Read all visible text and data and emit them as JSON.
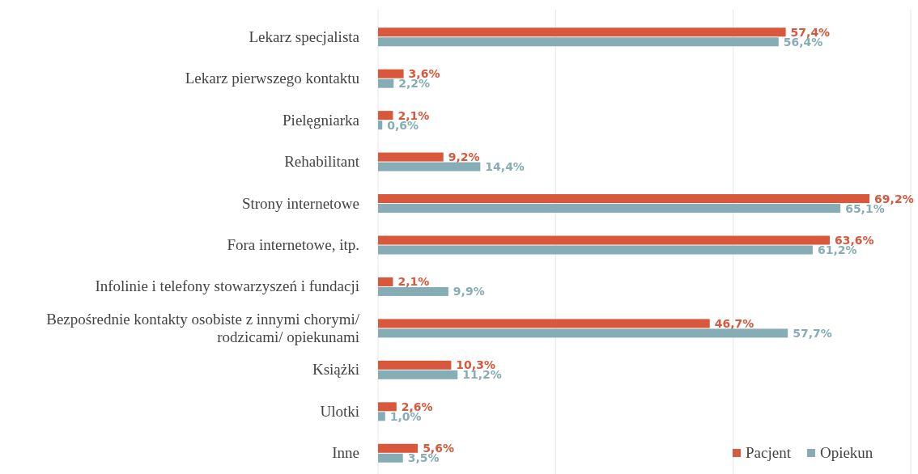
{
  "chart_data": {
    "type": "bar",
    "orientation": "horizontal",
    "categories": [
      "Lekarz specjalista",
      "Lekarz pierwszego kontaktu",
      "Pielęgniarka",
      "Rehabilitant",
      "Strony internetowe",
      "Fora internetowe, itp.",
      "Infolinie i telefony stowarzyszeń i fundacji",
      "Bezpośrednie kontakty osobiste z innymi chorymi/ rodzicami/ opiekunami",
      "Książki",
      "Ulotki",
      "Inne"
    ],
    "series": [
      {
        "name": "Pacjent",
        "color": "#d9573a",
        "values": [
          57.4,
          3.6,
          2.1,
          9.2,
          69.2,
          63.6,
          2.1,
          46.7,
          10.3,
          2.6,
          5.6
        ],
        "value_labels": [
          "57,4%",
          "3,6%",
          "2,1%",
          "9,2%",
          "69,2%",
          "63,6%",
          "2,1%",
          "46,7%",
          "10,3%",
          "2,6%",
          "5,6%"
        ]
      },
      {
        "name": "Opiekun",
        "color": "#86adb5",
        "values": [
          56.4,
          2.2,
          0.6,
          14.4,
          65.1,
          61.2,
          9.9,
          57.7,
          11.2,
          1.0,
          3.5
        ],
        "value_labels": [
          "56,4%",
          "2,2%",
          "0,6%",
          "14,4%",
          "65,1%",
          "61,2%",
          "9,9%",
          "57,7%",
          "11,2%",
          "1,0%",
          "3,5%"
        ]
      }
    ],
    "xlim": [
      0,
      75
    ],
    "xticks": [
      {
        "value": 0,
        "label": null
      },
      {
        "value": 25,
        "label": null
      },
      {
        "value": 50,
        "label": null
      },
      {
        "value": 75,
        "label": null
      }
    ],
    "tick_labels": "y",
    "grid": "x",
    "legend": "bottom right"
  }
}
